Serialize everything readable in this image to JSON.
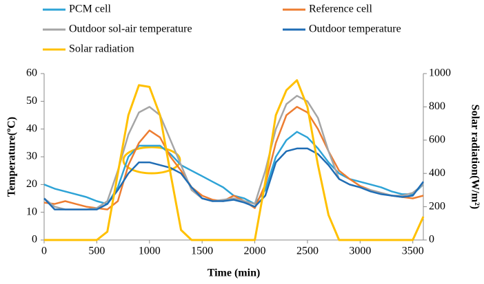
{
  "chart_data": {
    "type": "line",
    "x_label": "Time (min)",
    "y_label": "Temperature(ºC)",
    "y2_label": "Solar radiation(W/m²)",
    "legend": "top",
    "grid": false,
    "xlim": [
      0,
      3600
    ],
    "xticks": [
      0,
      500,
      1000,
      1500,
      2000,
      2500,
      3000,
      3500
    ],
    "ylim": [
      0,
      60
    ],
    "yticks": [
      0,
      10,
      20,
      30,
      40,
      50,
      60
    ],
    "y2lim": [
      0,
      1000
    ],
    "y2ticks": [
      0,
      200,
      400,
      600,
      800,
      1000
    ],
    "x": [
      0,
      100,
      200,
      300,
      400,
      500,
      600,
      700,
      800,
      900,
      1000,
      1100,
      1200,
      1300,
      1400,
      1500,
      1600,
      1700,
      1800,
      1900,
      2000,
      2100,
      2200,
      2300,
      2400,
      2500,
      2600,
      2700,
      2800,
      2900,
      3000,
      3100,
      3200,
      3300,
      3400,
      3500,
      3600
    ],
    "series": [
      {
        "name": "PCM cell",
        "color": "#2ea3d6",
        "values": [
          20,
          18.5,
          17.5,
          16.5,
          15.5,
          14,
          13,
          19,
          30,
          34,
          34,
          34,
          31,
          27,
          25,
          23,
          21,
          19,
          16,
          15,
          13,
          18,
          30,
          36,
          39,
          37,
          33,
          28,
          24,
          22,
          21,
          20,
          19,
          17.5,
          16.5,
          16.5,
          20
        ]
      },
      {
        "name": "Reference cell",
        "color": "#ed7d31",
        "values": [
          13.5,
          13,
          14,
          13,
          12,
          11.5,
          11,
          14,
          27,
          35,
          39.5,
          37,
          30,
          25,
          19,
          16,
          14.5,
          14,
          16,
          14,
          11.5,
          20,
          35,
          45,
          48,
          46,
          40,
          32,
          25,
          22,
          19.5,
          18,
          17,
          16,
          15.5,
          15,
          16
        ]
      },
      {
        "name": "Outdoor sol-air temperature",
        "color": "#a5a5a5",
        "values": [
          15,
          12,
          11,
          11,
          11,
          11.5,
          14,
          25,
          38,
          46,
          48,
          45,
          36,
          27,
          18,
          15,
          14,
          14.5,
          15,
          14,
          13,
          25,
          40,
          49,
          52,
          50,
          44,
          32,
          22,
          20,
          19,
          18,
          17,
          16,
          16,
          17,
          20
        ]
      },
      {
        "name": "Outdoor temperature",
        "color": "#1f6db5",
        "values": [
          15,
          11,
          11,
          11,
          11,
          11,
          13,
          18,
          24,
          28,
          28,
          27,
          26,
          24,
          19,
          15,
          14,
          14,
          14.5,
          13.5,
          12,
          16,
          28,
          32,
          33,
          33,
          31,
          27,
          22,
          20,
          19,
          17.5,
          16.5,
          16,
          15.5,
          16,
          21
        ]
      },
      {
        "name": "Solar radiation",
        "color": "#ffc000",
        "axis": "y2",
        "values": [
          0,
          0,
          0,
          0,
          0,
          0,
          50,
          400,
          750,
          930,
          920,
          750,
          400,
          60,
          0,
          0,
          0,
          0,
          0,
          0,
          0,
          350,
          750,
          900,
          960,
          800,
          450,
          150,
          0,
          0,
          0,
          0,
          0,
          0,
          0,
          0,
          140
        ]
      }
    ]
  }
}
